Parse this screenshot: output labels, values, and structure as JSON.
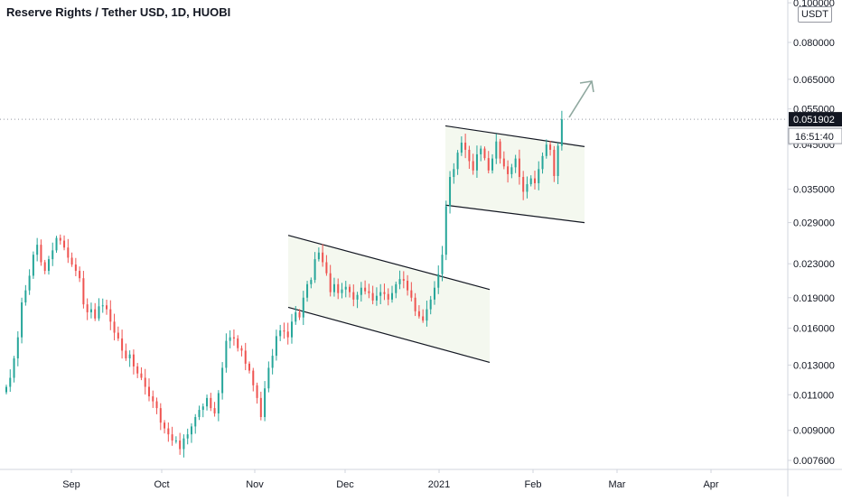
{
  "header": {
    "title": "Reserve Rights / Tether USD, 1D, HUOBI",
    "currency_badge": "USDT"
  },
  "colors": {
    "up": "#26a69a",
    "down": "#ef5350",
    "channel_fill": "#f4f8ef",
    "channel_line": "#131722",
    "arrow": "#8fa89f",
    "axis_text": "#131722",
    "price_tag_bg": "#131722",
    "price_tag_text": "#ffffff"
  },
  "price_axis": {
    "ticks": [
      "0.100000",
      "0.080000",
      "0.065000",
      "0.055000",
      "0.045000",
      "0.035000",
      "0.029000",
      "0.023000",
      "0.019000",
      "0.016000",
      "0.013000",
      "0.011000",
      "0.009000",
      "0.007600"
    ],
    "last_price_label": "0.051902",
    "countdown_label": "16:51:40"
  },
  "chart_data": {
    "type": "candlestick",
    "title": "Reserve Rights / Tether USD, 1D, HUOBI",
    "symbol": "Reserve Rights / Tether USD",
    "interval": "1D",
    "exchange": "HUOBI",
    "y_scale": "log",
    "x_ticks": [
      "Sep",
      "Oct",
      "Nov",
      "Dec",
      "2021",
      "Feb",
      "Mar",
      "Apr"
    ],
    "last_price": 0.051902,
    "close_prices": [
      0.0115,
      0.0121,
      0.0135,
      0.0152,
      0.0185,
      0.0198,
      0.0215,
      0.0242,
      0.0256,
      0.0232,
      0.0221,
      0.0236,
      0.0248,
      0.0266,
      0.0262,
      0.0252,
      0.0238,
      0.0229,
      0.0221,
      0.0212,
      0.0183,
      0.0175,
      0.0178,
      0.0169,
      0.0181,
      0.0182,
      0.0178,
      0.0166,
      0.0156,
      0.0151,
      0.0141,
      0.0135,
      0.0138,
      0.0129,
      0.0124,
      0.0121,
      0.0115,
      0.0109,
      0.0106,
      0.0102,
      0.0094,
      0.0091,
      0.0088,
      0.0085,
      0.0085,
      0.0081,
      0.0086,
      0.0088,
      0.0092,
      0.0097,
      0.0101,
      0.0103,
      0.0108,
      0.0102,
      0.0099,
      0.0111,
      0.0128,
      0.0149,
      0.0152,
      0.0151,
      0.0143,
      0.0141,
      0.0131,
      0.0126,
      0.0116,
      0.0108,
      0.0097,
      0.0114,
      0.0128,
      0.0137,
      0.0153,
      0.0158,
      0.0157,
      0.0152,
      0.0166,
      0.0175,
      0.017,
      0.019,
      0.0205,
      0.021,
      0.0236,
      0.0245,
      0.0232,
      0.0218,
      0.0196,
      0.0205,
      0.0195,
      0.0199,
      0.0202,
      0.0196,
      0.0188,
      0.0193,
      0.0201,
      0.0197,
      0.0195,
      0.0187,
      0.0192,
      0.0196,
      0.0194,
      0.0188,
      0.0195,
      0.0205,
      0.0211,
      0.0209,
      0.0198,
      0.019,
      0.0176,
      0.0171,
      0.0167,
      0.0178,
      0.0188,
      0.0201,
      0.0217,
      0.0242,
      0.0318,
      0.0375,
      0.0392,
      0.043,
      0.0455,
      0.0437,
      0.041,
      0.0389,
      0.0426,
      0.044,
      0.0417,
      0.0389,
      0.0416,
      0.0458,
      0.0416,
      0.0398,
      0.0381,
      0.0396,
      0.0416,
      0.0375,
      0.0345,
      0.036,
      0.0372,
      0.0362,
      0.0392,
      0.0422,
      0.045,
      0.0437,
      0.0377,
      0.0447,
      0.0519
    ],
    "channels": [
      {
        "name": "",
        "upper": [
          [
            0.027,
            0.0199
          ]
        ],
        "lower": [
          [
            0.018,
            0.0132
          ]
        ]
      },
      {
        "name": "",
        "upper": [
          [
            0.05,
            0.0445
          ]
        ],
        "lower": [
          [
            0.032,
            0.029
          ]
        ]
      }
    ]
  }
}
